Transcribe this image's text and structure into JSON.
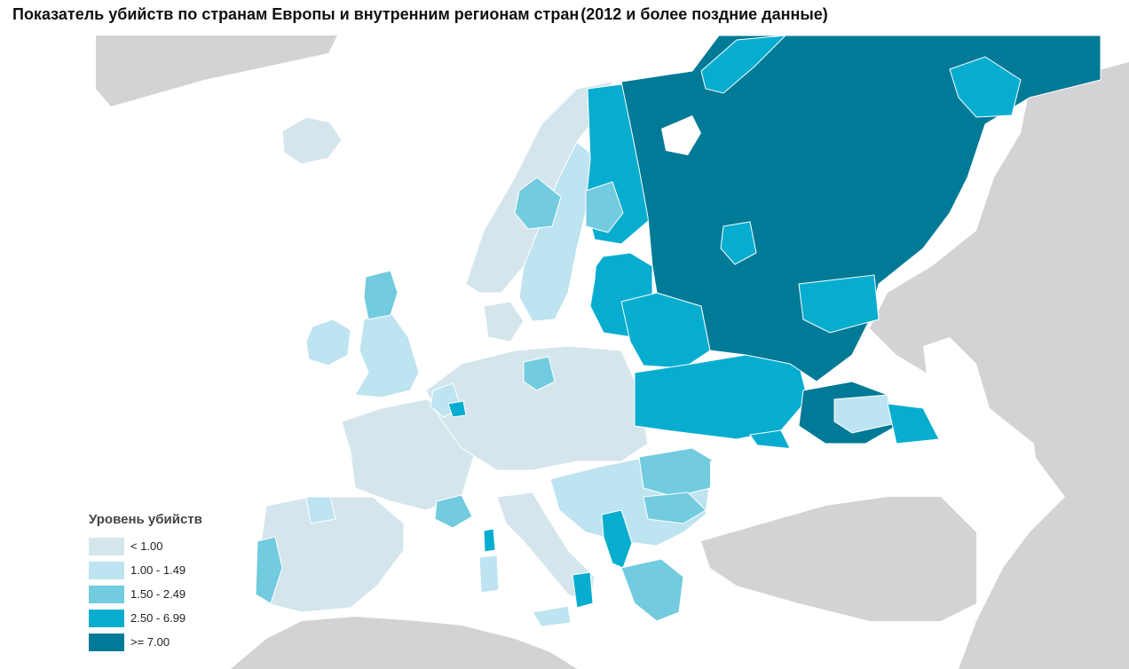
{
  "title": {
    "part1": "Показатель убийств по странам Европы и внутренним регионам стран",
    "part2": "(2012 и более поздние данные)"
  },
  "legend": {
    "title": "Уровень убийств",
    "items": [
      {
        "label": "< 1.00",
        "color": "#d4e6ec"
      },
      {
        "label": "1.00 - 1.49",
        "color": "#bde4f0"
      },
      {
        "label": "1.50 - 2.49",
        "color": "#72cbde"
      },
      {
        "label": "2.50 - 6.99",
        "color": "#07adcf"
      },
      {
        "label": ">= 7.00",
        "color": "#007a96"
      }
    ]
  },
  "colors": {
    "sea": "#ffffff",
    "non_europe_land": "#d3d3d5",
    "border": "#ffffff"
  }
}
